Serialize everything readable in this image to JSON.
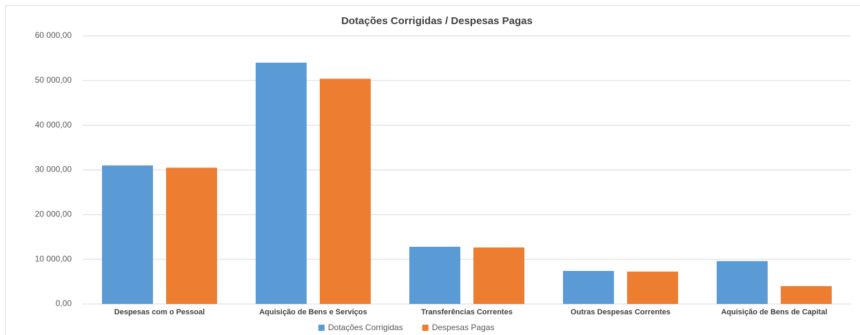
{
  "chart_data": {
    "type": "bar",
    "title": "Dotações Corrigidas / Despesas Pagas",
    "categories": [
      "Despesas com o Pessoal",
      "Aquisição de Bens e Serviços",
      "Transferências Correntes",
      "Outras Despesas Correntes",
      "Aquisição de Bens de Capital"
    ],
    "series": [
      {
        "name": "Dotações Corrigidas",
        "color": "#5b9bd5",
        "values": [
          31000,
          54000,
          12800,
          7400,
          9600
        ]
      },
      {
        "name": "Despesas Pagas",
        "color": "#ed7d31",
        "values": [
          30500,
          50400,
          12650,
          7250,
          4000
        ]
      }
    ],
    "ylim": [
      0,
      60000
    ],
    "yticks": [
      {
        "value": 0,
        "label": "0,00"
      },
      {
        "value": 10000,
        "label": "10 000,00"
      },
      {
        "value": 20000,
        "label": "20 000,00"
      },
      {
        "value": 30000,
        "label": "30 000,00"
      },
      {
        "value": 40000,
        "label": "40 000,00"
      },
      {
        "value": 50000,
        "label": "50 000,00"
      },
      {
        "value": 60000,
        "label": "60 000,00"
      }
    ],
    "grid": true,
    "legend": "bottom"
  }
}
